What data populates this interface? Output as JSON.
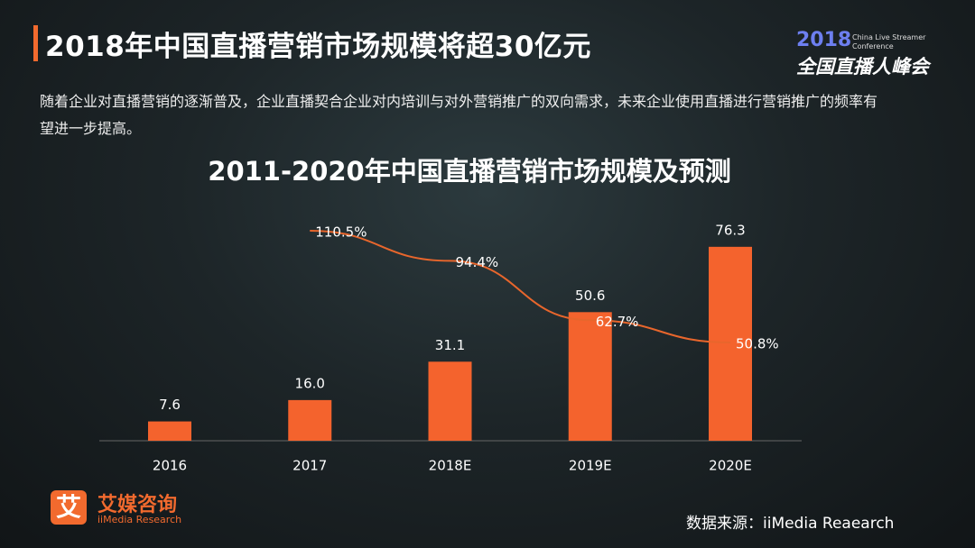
{
  "header": {
    "title": "2018年中国直播营销市场规模将超30亿元"
  },
  "description": "随着企业对直播营销的逐渐普及，企业直播契合企业对内培训与对外营销推广的双向需求，未来企业使用直播进行营销推广的频率有望进一步提高。",
  "logo": {
    "year": "2018",
    "english": "China Live Streamer Conference",
    "chinese": "全国直播人峰会"
  },
  "brand": {
    "icon": "艾",
    "name": "艾媒咨询",
    "english": "iiMedia Research"
  },
  "source": "数据来源：iiMedia Reaearch",
  "chart_data": {
    "type": "bar",
    "title": "2011-2020年中国直播营销市场规模及预测",
    "categories": [
      "2016",
      "2017",
      "2018E",
      "2019E",
      "2020E"
    ],
    "series": [
      {
        "type": "bar",
        "color": "#f4632d",
        "values": [
          7.6,
          16.0,
          31.1,
          50.6,
          76.3
        ],
        "value_labels": [
          "7.6",
          "16.0",
          "31.1",
          "50.6",
          "76.3"
        ]
      },
      {
        "type": "line",
        "axis": "y2",
        "color": "#e8662c",
        "values": [
          null,
          110.5,
          94.4,
          62.7,
          50.8
        ],
        "value_labels": [
          null,
          "110.5%",
          "94.4%",
          "62.7%",
          "50.8%"
        ]
      }
    ]
  }
}
